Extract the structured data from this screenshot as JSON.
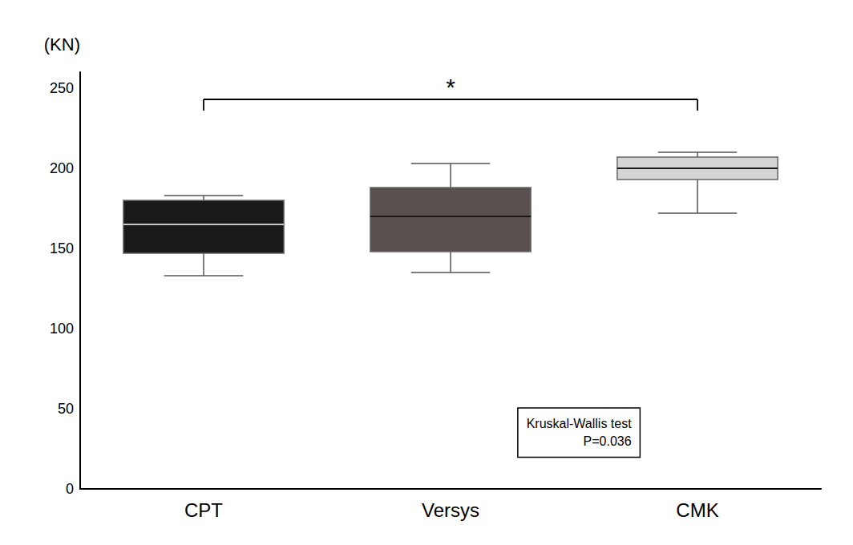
{
  "chart_data": {
    "type": "box",
    "ylabel": "(KN)",
    "categories": [
      "CPT",
      "Versys",
      "CMK"
    ],
    "values": [
      {
        "q10": 133,
        "q25": 147,
        "median": 165,
        "q75": 180,
        "q90": 183
      },
      {
        "q10": 135,
        "q25": 148,
        "median": 170,
        "q75": 188,
        "q90": 203
      },
      {
        "q10": 172,
        "q25": 193,
        "median": 200,
        "q75": 207,
        "q90": 210
      }
    ],
    "colors": [
      "#1a1a1a",
      "#5a5050",
      "#d4d4d4"
    ],
    "ylim": [
      0,
      260
    ],
    "yticks": [
      0,
      50,
      100,
      150,
      200,
      250
    ],
    "grid": false,
    "significance": {
      "from": "CPT",
      "to": "CMK",
      "y": 243,
      "drop": 7,
      "label": "*"
    },
    "annotation": "Kruskal-Wallis test\nP=0.036"
  }
}
